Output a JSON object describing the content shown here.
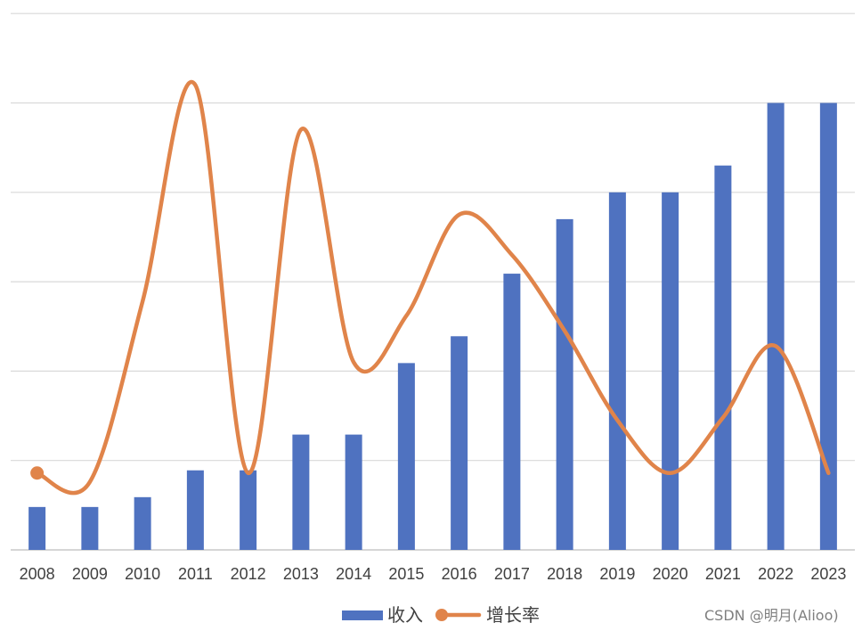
{
  "chart_data": {
    "type": "bar+line",
    "categories": [
      "2008",
      "2009",
      "2010",
      "2011",
      "2012",
      "2013",
      "2014",
      "2015",
      "2016",
      "2017",
      "2018",
      "2019",
      "2020",
      "2021",
      "2022",
      "2023"
    ],
    "series": [
      {
        "name": "收入",
        "type": "bar",
        "color": "#4f72c0",
        "values": [
          0.48,
          0.48,
          0.59,
          0.89,
          0.89,
          1.29,
          1.29,
          2.09,
          2.39,
          3.09,
          3.7,
          4.0,
          4.0,
          4.3,
          5.0,
          5.0
        ]
      },
      {
        "name": "增长率",
        "type": "line",
        "color": "#e0844a",
        "values": [
          0.86,
          0.76,
          2.78,
          5.2,
          0.86,
          4.7,
          2.1,
          2.62,
          3.75,
          3.3,
          2.45,
          1.45,
          0.86,
          1.48,
          2.28,
          0.86
        ]
      }
    ],
    "ylim": [
      0,
      6
    ],
    "gridlines": [
      0,
      1,
      2,
      3,
      4,
      5,
      6
    ],
    "grid": true,
    "legend": "bottom-center",
    "title": "",
    "xlabel": "",
    "ylabel": ""
  },
  "watermark": "CSDN @明月(Alioo)"
}
